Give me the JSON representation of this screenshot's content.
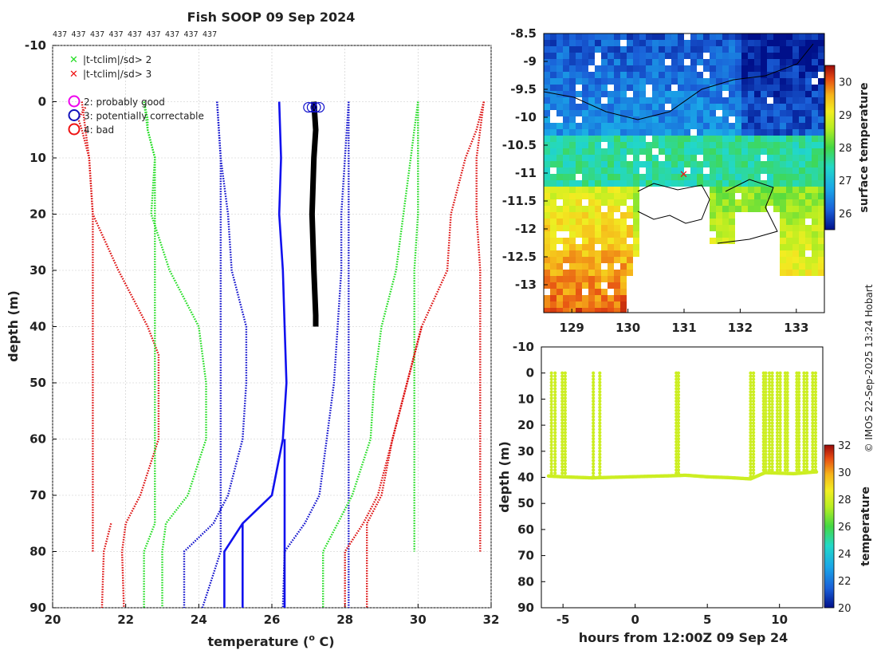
{
  "figure": {
    "title": "Fish SOOP 09 Sep 2024",
    "platform_ids": [
      "437",
      "437",
      "437",
      "437",
      "437",
      "437",
      "437",
      "437",
      "437"
    ],
    "credit": "© IMOS 22-Sep-2025 13:24 Hobart"
  },
  "legend": {
    "cross_items": [
      {
        "label": "|t-tclim|/sd> 2",
        "color": "#22dd22"
      },
      {
        "label": "|t-tclim|/sd> 3",
        "color": "#ee1111"
      }
    ],
    "flag_items": [
      {
        "label": "2: probably good",
        "color": "#ee00ee"
      },
      {
        "label": "3: potentially correctable",
        "color": "#1111bb"
      },
      {
        "label": "4: bad",
        "color": "#ee1111"
      }
    ]
  },
  "chart_data": [
    {
      "id": "profile",
      "type": "line",
      "xlabel": "temperature (o C)",
      "xlabel_main": "temperature (",
      "xlabel_sup": "o",
      "xlabel_end": " C)",
      "ylabel": "depth (m)",
      "xlim": [
        20,
        32
      ],
      "ylim": [
        -10,
        90
      ],
      "xticks": [
        "20",
        "22",
        "24",
        "26",
        "28",
        "30",
        "32"
      ],
      "yticks": [
        "-10",
        "0",
        "10",
        "20",
        "30",
        "40",
        "50",
        "60",
        "70",
        "80",
        "90"
      ],
      "grid": true,
      "series": [
        {
          "name": "clim -3sd",
          "color": "#dd1111",
          "style": "dotted",
          "depth": [
            1,
            3,
            5,
            10,
            20,
            30,
            40,
            50,
            60,
            70,
            75,
            80
          ],
          "temp": [
            20.9,
            20.7,
            20.8,
            21.0,
            21.1,
            21.1,
            21.1,
            21.1,
            21.1,
            21.1,
            21.1,
            21.1
          ]
        },
        {
          "name": "clim -3sd deep",
          "color": "#dd1111",
          "style": "dotted",
          "depth": [
            75,
            80,
            90
          ],
          "temp": [
            21.6,
            21.4,
            21.35
          ]
        },
        {
          "name": "clim -3sd (obs)",
          "color": "#dd1111",
          "style": "dotted",
          "depth": [
            0,
            5,
            10,
            20,
            30,
            40,
            45,
            50,
            60,
            70,
            75,
            80,
            90
          ],
          "temp": [
            20.8,
            20.9,
            21.0,
            21.1,
            21.8,
            22.6,
            22.9,
            22.9,
            22.9,
            22.4,
            22.0,
            21.9,
            21.95
          ]
        },
        {
          "name": "clim -2sd",
          "color": "#22dd22",
          "style": "dotted",
          "depth": [
            0,
            3,
            5,
            10,
            20,
            30,
            40,
            50,
            60,
            70,
            75,
            80,
            90
          ],
          "temp": [
            22.5,
            22.6,
            22.6,
            22.8,
            22.8,
            22.8,
            22.8,
            22.8,
            22.8,
            22.8,
            22.8,
            22.5,
            22.5
          ]
        },
        {
          "name": "clim -2sd (obs)",
          "color": "#22dd22",
          "style": "dotted",
          "depth": [
            0,
            5,
            10,
            20,
            30,
            40,
            50,
            60,
            70,
            75,
            80,
            90
          ],
          "temp": [
            22.5,
            22.6,
            22.8,
            22.7,
            23.2,
            24.0,
            24.2,
            24.2,
            23.7,
            23.1,
            23.0,
            23.0
          ]
        },
        {
          "name": "clim -1sd",
          "color": "#1111cc",
          "style": "dotted",
          "depth": [
            0,
            5,
            10,
            20,
            30,
            40,
            50,
            60,
            70,
            75,
            80,
            90
          ],
          "temp": [
            24.5,
            24.55,
            24.6,
            24.6,
            24.6,
            24.6,
            24.6,
            24.6,
            24.6,
            24.6,
            24.6,
            24.1
          ]
        },
        {
          "name": "clim -1sd (obs)",
          "color": "#1111cc",
          "style": "dotted",
          "depth": [
            0,
            10,
            20,
            30,
            40,
            50,
            60,
            70,
            75,
            80,
            90
          ],
          "temp": [
            24.5,
            24.6,
            24.8,
            24.9,
            25.3,
            25.3,
            25.2,
            24.8,
            24.4,
            23.6,
            23.6
          ]
        },
        {
          "name": "clim mean",
          "color": "#1111ee",
          "style": "solid",
          "depth": [
            0,
            10,
            20,
            30,
            40,
            50,
            60,
            70,
            75,
            80,
            90
          ],
          "temp": [
            26.2,
            26.25,
            26.2,
            26.3,
            26.35,
            26.4,
            26.3,
            26.0,
            25.2,
            24.7,
            24.7
          ]
        },
        {
          "name": "clim mean 2",
          "color": "#1111ee",
          "style": "solid",
          "depth": [
            75,
            80,
            90
          ],
          "temp": [
            25.2,
            25.2,
            25.2
          ]
        },
        {
          "name": "clim mean 3",
          "color": "#1111ee",
          "style": "solid",
          "depth": [
            60,
            70,
            80,
            90
          ],
          "temp": [
            26.35,
            26.35,
            26.35,
            26.35
          ]
        },
        {
          "name": "clim +1sd",
          "color": "#1111cc",
          "style": "dotted",
          "depth": [
            0,
            10,
            20,
            30,
            40,
            50,
            60,
            70,
            75,
            80,
            90
          ],
          "temp": [
            28.1,
            28.0,
            27.9,
            27.9,
            27.8,
            27.7,
            27.5,
            27.3,
            26.9,
            26.35,
            26.3
          ]
        },
        {
          "name": "clim +1sd b",
          "color": "#1111cc",
          "style": "dotted",
          "depth": [
            0,
            10,
            20,
            30,
            40,
            50,
            60,
            70,
            80,
            90
          ],
          "temp": [
            28.1,
            28.1,
            28.1,
            28.1,
            28.1,
            28.1,
            28.1,
            28.1,
            28.1,
            28.1
          ]
        },
        {
          "name": "clim +2sd",
          "color": "#22dd22",
          "style": "dotted",
          "depth": [
            0,
            5,
            10,
            20,
            30,
            40,
            50,
            60,
            70,
            75,
            80,
            90
          ],
          "temp": [
            30.0,
            29.9,
            29.8,
            29.6,
            29.4,
            29.0,
            28.8,
            28.7,
            28.2,
            27.8,
            27.4,
            27.4
          ]
        },
        {
          "name": "clim +2sd b",
          "color": "#22dd22",
          "style": "dotted",
          "depth": [
            0,
            10,
            20,
            30,
            40,
            50,
            60,
            70,
            80
          ],
          "temp": [
            30.0,
            30.0,
            30.0,
            29.9,
            29.9,
            29.9,
            29.9,
            29.9,
            29.9
          ]
        },
        {
          "name": "clim +3sd",
          "color": "#dd1111",
          "style": "dotted",
          "depth": [
            0,
            5,
            10,
            20,
            30,
            40,
            50,
            60,
            70,
            75,
            80,
            90
          ],
          "temp": [
            31.8,
            31.6,
            31.3,
            30.9,
            30.8,
            30.1,
            29.7,
            29.3,
            29.0,
            28.6,
            28.6,
            28.6
          ]
        },
        {
          "name": "clim +3sd b",
          "color": "#dd1111",
          "style": "dotted",
          "depth": [
            0,
            5,
            10,
            20,
            30,
            40,
            50,
            60,
            70,
            75,
            80
          ],
          "temp": [
            31.8,
            31.7,
            31.6,
            31.6,
            31.7,
            31.7,
            31.7,
            31.7,
            31.7,
            31.7,
            31.7
          ]
        },
        {
          "name": "clim +3sd c",
          "color": "#dd1111",
          "style": "dotted",
          "depth": [
            40,
            50,
            60,
            70,
            75,
            80,
            90
          ],
          "temp": [
            30.1,
            29.7,
            29.3,
            28.9,
            28.5,
            28.0,
            28.0
          ]
        },
        {
          "name": "observed",
          "color": "#000000",
          "style": "solid-thick",
          "depth": [
            0,
            5,
            10,
            20,
            30,
            38,
            40
          ],
          "temp": [
            27.15,
            27.2,
            27.15,
            27.1,
            27.15,
            27.2,
            27.2
          ]
        }
      ],
      "flag_circles": {
        "color": "#1111cc",
        "depth": [
          1,
          1,
          1,
          1
        ],
        "temp": [
          27.0,
          27.1,
          27.2,
          27.3
        ]
      }
    },
    {
      "id": "map",
      "type": "heatmap",
      "colorbar_label": "surface temperature",
      "xlim": [
        128.5,
        133.5
      ],
      "ylim": [
        -13.5,
        -8.5
      ],
      "xticks": [
        "129",
        "130",
        "131",
        "132",
        "133"
      ],
      "yticks": [
        "-8.5",
        "-9",
        "-9.5",
        "-10",
        "-10.5",
        "-11",
        "-11.5",
        "-12",
        "-12.5",
        "-13"
      ],
      "clim": [
        25.5,
        30.5
      ],
      "cticks": [
        "26",
        "27",
        "28",
        "29",
        "30"
      ],
      "marker": {
        "lon": 131.0,
        "lat": -11.0,
        "color": "#ee1111"
      }
    },
    {
      "id": "timeseries",
      "type": "scatter",
      "xlabel": "hours from 12:00Z 09 Sep 24",
      "ylabel": "depth (m)",
      "colorbar_label": "temperature",
      "xlim": [
        -6.5,
        13
      ],
      "ylim": [
        -10,
        90
      ],
      "xticks": [
        "-5",
        "0",
        "5",
        "10"
      ],
      "yticks": [
        "-10",
        "0",
        "10",
        "20",
        "30",
        "40",
        "50",
        "60",
        "70",
        "80",
        "90"
      ],
      "cticks": [
        "20",
        "22",
        "24",
        "26",
        "28",
        "30",
        "32"
      ],
      "clim": [
        20,
        32
      ],
      "point_color": "#ccee22",
      "baseline_depth": [
        [
          -6,
          39.5
        ],
        [
          -5,
          39.8
        ],
        [
          -3,
          40.2
        ],
        [
          -1,
          39.9
        ],
        [
          1,
          39.6
        ],
        [
          2.5,
          39.4
        ],
        [
          3.5,
          39.2
        ],
        [
          5,
          39.8
        ],
        [
          6.5,
          40.1
        ],
        [
          8,
          40.6
        ],
        [
          9,
          38.2
        ],
        [
          11,
          38.6
        ],
        [
          12.5,
          37.9
        ]
      ],
      "surfacings": [
        [
          -5.8,
          -5.55
        ],
        [
          -5.05,
          -4.85
        ],
        [
          -2.9,
          -2.45
        ],
        [
          2.85,
          3.0
        ],
        [
          8.0,
          8.2
        ],
        [
          8.9,
          9.05
        ],
        [
          9.3,
          9.5
        ],
        [
          9.85,
          10.05
        ],
        [
          10.4,
          10.55
        ],
        [
          11.2,
          11.35
        ],
        [
          11.7,
          11.9
        ],
        [
          12.3,
          12.5
        ]
      ]
    }
  ]
}
